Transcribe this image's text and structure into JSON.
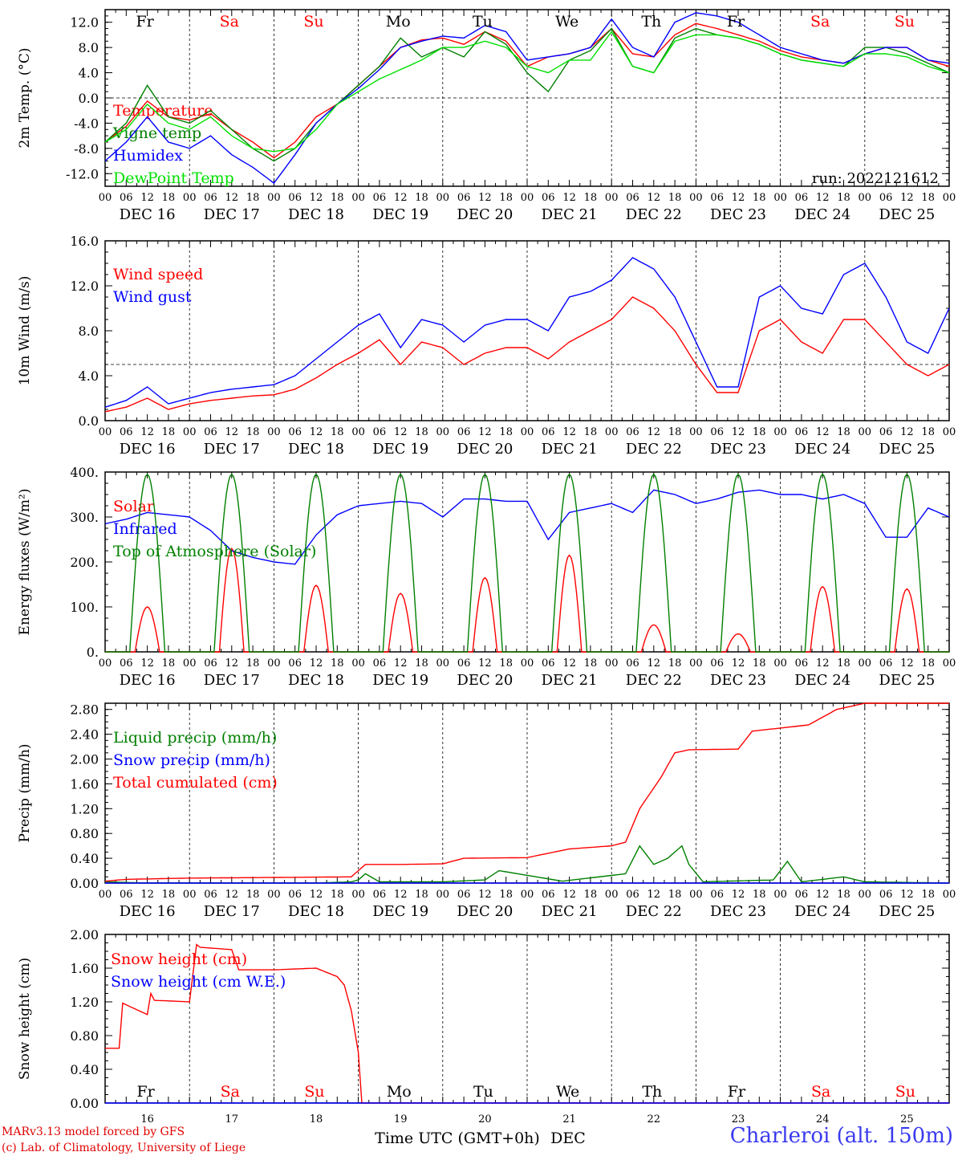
{
  "run_label": "run: 2022121612",
  "hour_ticks": [
    "00",
    "06",
    "12",
    "18"
  ],
  "date_labels": [
    "DEC 16",
    "DEC 17",
    "DEC 18",
    "DEC 19",
    "DEC 20",
    "DEC 21",
    "DEC 22",
    "DEC 23",
    "DEC 24",
    "DEC 25"
  ],
  "weekdays": [
    {
      "label": "Fr",
      "color": "#000000"
    },
    {
      "label": "Sa",
      "color": "#ff0000"
    },
    {
      "label": "Su",
      "color": "#ff0000"
    },
    {
      "label": "Mo",
      "color": "#000000"
    },
    {
      "label": "Tu",
      "color": "#000000"
    },
    {
      "label": "We",
      "color": "#000000"
    },
    {
      "label": "Th",
      "color": "#000000"
    },
    {
      "label": "Fr",
      "color": "#000000"
    },
    {
      "label": "Sa",
      "color": "#ff0000"
    },
    {
      "label": "Su",
      "color": "#ff0000"
    }
  ],
  "bottom_day_numbers": [
    "16",
    "17",
    "18",
    "19",
    "20",
    "21",
    "22",
    "23",
    "24",
    "25"
  ],
  "x_axis_title": "Time UTC (GMT+0h)",
  "x_axis_month": "DEC",
  "credits": [
    "MARv3.13 model forced by GFS",
    "(c) Lab. of Climatology, University of Liege"
  ],
  "location": "Charleroi (alt. 150m)",
  "colors": {
    "red": "#ff0000",
    "green": "#008000",
    "blue": "#0000ff",
    "lightgreen": "#00e000"
  },
  "chart_data": [
    {
      "type": "line",
      "ylabel": "2m Temp. (°C)",
      "ylim": [
        -14,
        14
      ],
      "yticks": [
        "12.0",
        "8.0",
        "4.0",
        "0.0",
        "-4.0",
        "-8.0",
        "-12.0"
      ],
      "ytick_values": [
        12,
        8,
        4,
        0,
        -4,
        -8,
        -12
      ],
      "hline": 0,
      "x_unit": "hours since DEC 16 00 UTC",
      "series": [
        {
          "name": "Temperature",
          "color": "#ff0000",
          "x": [
            0,
            6,
            12,
            18,
            24,
            30,
            36,
            42,
            48,
            54,
            60,
            66,
            72,
            78,
            84,
            90,
            96,
            102,
            108,
            114,
            120,
            126,
            132,
            138,
            144,
            150,
            156,
            162,
            168,
            174,
            180,
            186,
            192,
            198,
            204,
            210,
            216,
            222,
            228,
            234,
            240
          ],
          "values": [
            -7,
            -4.5,
            -0.5,
            -3,
            -3.5,
            -2.5,
            -5,
            -7,
            -9.5,
            -7,
            -3,
            -1,
            2,
            5,
            8,
            9.2,
            9.5,
            8.5,
            10.5,
            9,
            5,
            6.5,
            7,
            8,
            11,
            7,
            6.5,
            10,
            11.8,
            11,
            10,
            9,
            7.5,
            6.5,
            6,
            5.5,
            7,
            8,
            8,
            6,
            5
          ]
        },
        {
          "name": "Vigne temp",
          "color": "#008000",
          "x": [
            0,
            6,
            12,
            18,
            24,
            30,
            36,
            42,
            48,
            54,
            60,
            66,
            72,
            78,
            84,
            90,
            96,
            102,
            108,
            114,
            120,
            126,
            132,
            138,
            144,
            150,
            156,
            162,
            168,
            174,
            180,
            186,
            192,
            198,
            204,
            210,
            216,
            222,
            228,
            234,
            240
          ],
          "values": [
            -7,
            -4,
            2,
            -3,
            -4,
            -2,
            -5,
            -8,
            -10,
            -8,
            -4,
            -1,
            2,
            5,
            9.5,
            6.5,
            8,
            6.5,
            10.5,
            8.5,
            4,
            1,
            6,
            7.5,
            11,
            5,
            4,
            9.5,
            11,
            10,
            9.5,
            8.5,
            7,
            6,
            5.5,
            5,
            8,
            8,
            7,
            5.5,
            4
          ]
        },
        {
          "name": "Humidex",
          "color": "#0000ff",
          "x": [
            0,
            6,
            12,
            18,
            24,
            30,
            36,
            42,
            48,
            54,
            60,
            66,
            72,
            78,
            84,
            90,
            96,
            102,
            108,
            114,
            120,
            126,
            132,
            138,
            144,
            150,
            156,
            162,
            168,
            174,
            180,
            186,
            192,
            198,
            204,
            210,
            216,
            222,
            228,
            234,
            240
          ],
          "values": [
            -10,
            -7,
            -3,
            -7,
            -8,
            -6,
            -9,
            -11,
            -13.5,
            -9,
            -4,
            -1,
            1.5,
            4.5,
            8,
            9,
            9.8,
            9.5,
            11.5,
            10.5,
            6,
            6.5,
            7,
            8,
            12.5,
            8,
            6.5,
            12,
            13.5,
            13,
            12,
            10,
            8,
            7,
            6,
            5.5,
            7,
            8,
            8,
            6,
            5.5
          ]
        },
        {
          "name": "DewPoint Temp",
          "color": "#00e000",
          "x": [
            0,
            6,
            12,
            18,
            24,
            30,
            36,
            42,
            48,
            54,
            60,
            66,
            72,
            78,
            84,
            90,
            96,
            102,
            108,
            114,
            120,
            126,
            132,
            138,
            144,
            150,
            156,
            162,
            168,
            174,
            180,
            186,
            192,
            198,
            204,
            210,
            216,
            222,
            228,
            234,
            240
          ],
          "values": [
            -7,
            -5,
            -1,
            -4,
            -5,
            -3,
            -6,
            -8,
            -8.5,
            -8,
            -5,
            -1,
            1,
            3,
            4.5,
            6,
            8,
            8,
            9,
            8,
            5,
            4,
            6,
            6,
            10.5,
            5,
            4,
            9,
            10,
            10,
            9.5,
            8.5,
            7,
            6,
            5.5,
            5,
            7,
            7,
            6.5,
            5,
            4
          ]
        }
      ],
      "annotation": "run: 2022121612"
    },
    {
      "type": "line",
      "ylabel": "10m Wind (m/s)",
      "ylim": [
        0,
        16
      ],
      "yticks": [
        "16.0",
        "12.0",
        "8.0",
        "4.0",
        "0.0"
      ],
      "ytick_values": [
        16,
        12,
        8,
        4,
        0
      ],
      "hline": 5,
      "series": [
        {
          "name": "Wind speed",
          "color": "#ff0000",
          "x": [
            0,
            6,
            12,
            18,
            24,
            30,
            36,
            42,
            48,
            54,
            60,
            66,
            72,
            78,
            84,
            90,
            96,
            102,
            108,
            114,
            120,
            126,
            132,
            138,
            144,
            150,
            156,
            162,
            168,
            174,
            180,
            186,
            192,
            198,
            204,
            210,
            216,
            222,
            228,
            234,
            240
          ],
          "values": [
            0.8,
            1.2,
            2,
            1,
            1.5,
            1.8,
            2,
            2.2,
            2.3,
            2.8,
            3.8,
            5,
            6,
            7.2,
            5,
            7,
            6.5,
            5,
            6,
            6.5,
            6.5,
            5.5,
            7,
            8,
            9,
            11,
            10,
            8,
            5,
            2.5,
            2.5,
            8,
            9,
            7,
            6,
            9,
            9,
            7,
            5,
            4,
            5
          ]
        },
        {
          "name": "Wind gust",
          "color": "#0000ff",
          "x": [
            0,
            6,
            12,
            18,
            24,
            30,
            36,
            42,
            48,
            54,
            60,
            66,
            72,
            78,
            84,
            90,
            96,
            102,
            108,
            114,
            120,
            126,
            132,
            138,
            144,
            150,
            156,
            162,
            168,
            174,
            180,
            186,
            192,
            198,
            204,
            210,
            216,
            222,
            228,
            234,
            240
          ],
          "values": [
            1.2,
            1.8,
            3,
            1.5,
            2,
            2.5,
            2.8,
            3,
            3.2,
            4,
            5.5,
            7,
            8.5,
            9.5,
            6.5,
            9,
            8.5,
            7,
            8.5,
            9,
            9,
            8,
            11,
            11.5,
            12.5,
            14.5,
            13.5,
            11,
            7,
            3,
            3,
            11,
            12,
            10,
            9.5,
            13,
            14,
            11,
            7,
            6,
            10
          ]
        }
      ]
    },
    {
      "type": "line",
      "ylabel": "Energy fluxes (W/m²)",
      "ylim": [
        0,
        400
      ],
      "yticks": [
        "400.",
        "300.",
        "200.",
        "100.",
        "0."
      ],
      "ytick_values": [
        400,
        300,
        200,
        100,
        0
      ],
      "series": [
        {
          "name": "Solar",
          "color": "#ff0000",
          "daily_peaks": [
            100,
            230,
            148,
            130,
            165,
            215,
            60,
            40,
            145,
            140
          ]
        },
        {
          "name": "Infrared",
          "color": "#0000ff",
          "x": [
            0,
            6,
            12,
            18,
            24,
            30,
            36,
            42,
            48,
            54,
            60,
            66,
            72,
            78,
            84,
            90,
            96,
            102,
            108,
            114,
            120,
            126,
            132,
            138,
            144,
            150,
            156,
            162,
            168,
            174,
            180,
            186,
            192,
            198,
            204,
            210,
            216,
            222,
            228,
            234,
            240
          ],
          "values": [
            285,
            295,
            310,
            305,
            300,
            270,
            225,
            210,
            200,
            195,
            260,
            305,
            325,
            330,
            335,
            330,
            300,
            340,
            340,
            335,
            335,
            250,
            310,
            320,
            330,
            310,
            360,
            350,
            330,
            340,
            355,
            360,
            350,
            350,
            340,
            350,
            330,
            255,
            255,
            320,
            300
          ]
        },
        {
          "name": "Top of Atmosphere (Solar)",
          "color": "#008000",
          "daily_peaks": [
            395,
            395,
            395,
            395,
            395,
            395,
            395,
            395,
            395,
            395
          ]
        }
      ]
    },
    {
      "type": "line",
      "ylabel": "Precip (mm/h)",
      "ylim": [
        0,
        2.9
      ],
      "yticks": [
        "2.80",
        "2.40",
        "2.00",
        "1.60",
        "1.20",
        "0.80",
        "0.40",
        "0.00"
      ],
      "ytick_values": [
        2.8,
        2.4,
        2.0,
        1.6,
        1.2,
        0.8,
        0.4,
        0
      ],
      "series": [
        {
          "name": "Liquid precip (mm/h)",
          "color": "#008000",
          "x": [
            0,
            12,
            24,
            60,
            70,
            72,
            74,
            78,
            96,
            108,
            112,
            130,
            148,
            152,
            156,
            160,
            164,
            166,
            170,
            190,
            194,
            198,
            210,
            216,
            240
          ],
          "values": [
            0.02,
            0,
            0,
            0,
            0.02,
            0.05,
            0.15,
            0.02,
            0.02,
            0.05,
            0.2,
            0.03,
            0.15,
            0.6,
            0.3,
            0.4,
            0.6,
            0.3,
            0.02,
            0.05,
            0.35,
            0.02,
            0.1,
            0.02,
            0
          ]
        },
        {
          "name": "Snow precip (mm/h)",
          "color": "#0000ff",
          "x": [
            0,
            240
          ],
          "values": [
            0,
            0
          ]
        },
        {
          "name": "Total cumulated (cm)",
          "color": "#ff0000",
          "x": [
            0,
            6,
            24,
            48,
            70,
            74,
            84,
            96,
            102,
            120,
            132,
            144,
            148,
            152,
            158,
            162,
            166,
            180,
            184,
            192,
            200,
            208,
            216,
            240
          ],
          "values": [
            0.03,
            0.06,
            0.08,
            0.09,
            0.1,
            0.3,
            0.3,
            0.31,
            0.4,
            0.41,
            0.55,
            0.6,
            0.66,
            1.2,
            1.7,
            2.1,
            2.15,
            2.16,
            2.45,
            2.5,
            2.55,
            2.8,
            2.9,
            2.9
          ]
        }
      ]
    },
    {
      "type": "line",
      "ylabel": "Snow height (cm)",
      "ylim": [
        0,
        2.0
      ],
      "yticks": [
        "2.00",
        "1.60",
        "1.20",
        "0.80",
        "0.40",
        "0.00"
      ],
      "ytick_values": [
        2.0,
        1.6,
        1.2,
        0.8,
        0.4,
        0
      ],
      "series": [
        {
          "name": "Snow height (cm)",
          "color": "#ff0000",
          "x": [
            0,
            4,
            4.2,
            12,
            13,
            13.2,
            24,
            26,
            26.2,
            36,
            38,
            48,
            60,
            66,
            68,
            70,
            72,
            72.5,
            240
          ],
          "values": [
            0.65,
            0.65,
            1.2,
            1.05,
            1.3,
            1.22,
            1.2,
            1.88,
            1.85,
            1.82,
            1.58,
            1.58,
            1.6,
            1.5,
            1.4,
            1.1,
            0.6,
            0,
            0
          ]
        },
        {
          "name": "Snow height (cm W.E.)",
          "color": "#0000ff",
          "x": [
            0,
            240
          ],
          "values": [
            0,
            0
          ]
        }
      ]
    }
  ]
}
